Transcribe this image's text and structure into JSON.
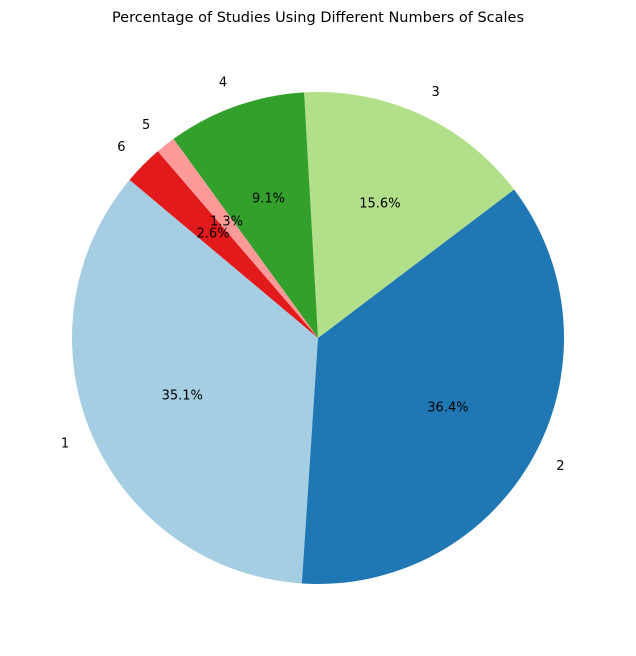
{
  "chart_data": {
    "type": "pie",
    "title": "Percentage of Studies Using Different Numbers of Scales",
    "labels": [
      "1",
      "2",
      "3",
      "4",
      "5",
      "6"
    ],
    "values": [
      35.1,
      36.4,
      15.6,
      9.1,
      1.3,
      2.6
    ],
    "value_labels": [
      "35.1%",
      "36.4%",
      "15.6%",
      "9.1%",
      "1.3%",
      "2.6%"
    ],
    "colors": [
      "#a6cee3",
      "#1f78b4",
      "#b2df8a",
      "#33a02c",
      "#fb9a99",
      "#e31a1c"
    ],
    "start_angle_deg": 140,
    "direction": "counterclockwise",
    "legend": "none"
  }
}
